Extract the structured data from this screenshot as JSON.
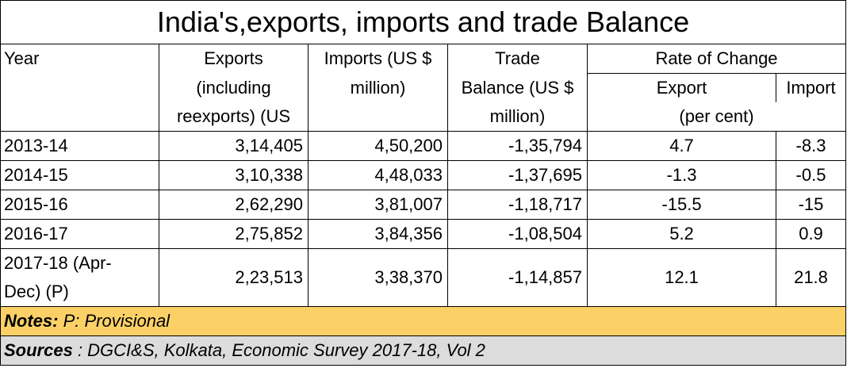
{
  "chart_data": {
    "type": "table",
    "title": "India's,exports, imports and trade Balance",
    "headers": {
      "year": "Year",
      "exports": [
        "Exports",
        "(including",
        "reexports) (US"
      ],
      "imports": [
        "Imports (US $",
        "million)"
      ],
      "trade": [
        "Trade",
        "Balance (US $",
        "million)"
      ],
      "rate": "Rate of Change",
      "rate_export": "Export",
      "rate_import": "Import",
      "per_cent": "(per cent)"
    },
    "rows": [
      {
        "year": "2013-14",
        "exports": "3,14,405",
        "imports": "4,50,200",
        "trade": "-1,35,794",
        "rate_export": "4.7",
        "rate_import": "-8.3"
      },
      {
        "year": "2014-15",
        "exports": "3,10,338",
        "imports": "4,48,033",
        "trade": "-1,37,695",
        "rate_export": "-1.3",
        "rate_import": "-0.5"
      },
      {
        "year": "2015-16",
        "exports": "2,62,290",
        "imports": "3,81,007",
        "trade": "-1,18,717",
        "rate_export": "-15.5",
        "rate_import": "-15"
      },
      {
        "year": "2016-17",
        "exports": "2,75,852",
        "imports": "3,84,356",
        "trade": "-1,08,504",
        "rate_export": "5.2",
        "rate_import": "0.9"
      },
      {
        "year_lines": [
          "2017-18 (Apr-",
          "Dec) (P)"
        ],
        "exports": "2,23,513",
        "imports": "3,38,370",
        "trade": "-1,14,857",
        "rate_export": "12.1",
        "rate_import": "21.8"
      }
    ],
    "notes_label": "Notes:",
    "notes_text": " P: Provisional",
    "sources_label": "Sources",
    "sources_text": " : DGCI&S, Kolkata, Economic Survey 2017-18, Vol 2"
  },
  "colors": {
    "notes_bg": "#fbd167",
    "sources_bg": "#dcdcdc"
  }
}
